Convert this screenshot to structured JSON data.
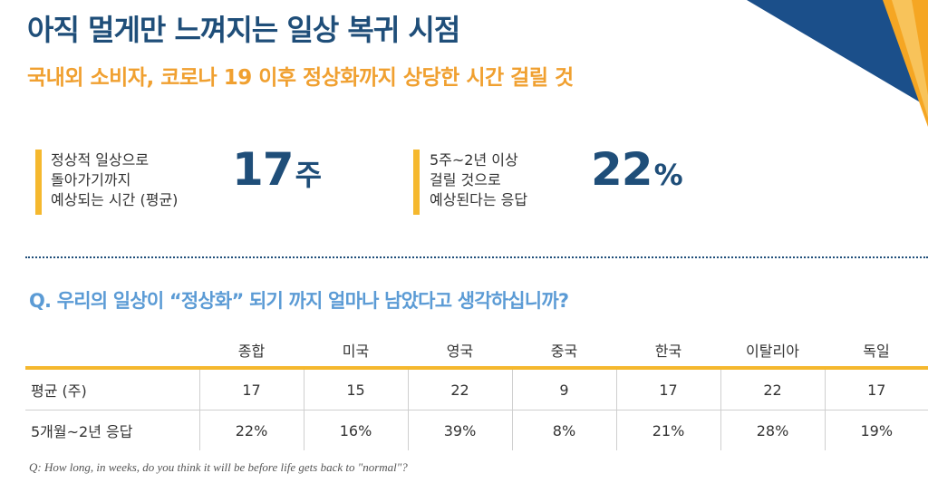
{
  "header": {
    "title": "아직 멀게만 느껴지는 일상 복귀 시점",
    "subtitle": "국내외 소비자, 코로나 19 이후 정상화까지 상당한 시간 걸릴 것"
  },
  "stats": [
    {
      "label_lines": [
        "정상적 일상으로",
        "돌아가기까지",
        "예상되는 시간 (평균)"
      ],
      "value": "17",
      "unit": "주"
    },
    {
      "label_lines": [
        "5주~2년 이상",
        "걸릴 것으로",
        "예상된다는 응답"
      ],
      "value": "22",
      "unit": "%"
    }
  ],
  "question": "Q. 우리의 일상이 “정상화” 되기 까지 얼마나 남았다고 생각하십니까?",
  "table": {
    "columns": [
      "종합",
      "미국",
      "영국",
      "중국",
      "한국",
      "이탈리아",
      "독일"
    ],
    "rows": [
      {
        "label": "평균 (주)",
        "values": [
          "17",
          "15",
          "22",
          "9",
          "17",
          "22",
          "17"
        ]
      },
      {
        "label": "5개월~2년 응답",
        "values": [
          "22%",
          "16%",
          "39%",
          "8%",
          "21%",
          "28%",
          "19%"
        ]
      }
    ]
  },
  "footnote": "Q: How long, in weeks, do you think it will be before life gets back to \"normal\"?",
  "colors": {
    "title": "#1f4e79",
    "accent_orange": "#f0a030",
    "accent_yellow": "#f5b82e",
    "question_blue": "#5b9bd5",
    "corner_navy": "#1b4f8a"
  }
}
